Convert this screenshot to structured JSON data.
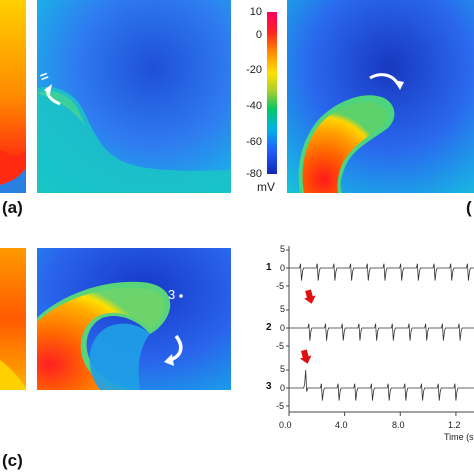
{
  "panels": {
    "a_label": "(a)",
    "b_label": "(",
    "c_label": "(c)",
    "electrode_marker_a": "=",
    "site_label_c": "3"
  },
  "colorbar": {
    "ticks": [
      "10",
      "0",
      "-20",
      "-40",
      "-60",
      "-80"
    ],
    "unit": "mV",
    "range_mV": [
      -80,
      10
    ],
    "colors": [
      "#ff0066",
      "#ff2020",
      "#ff8c00",
      "#ffe000",
      "#9acd32",
      "#00c864",
      "#00b4e6",
      "#2060ff",
      "#1428b4"
    ]
  },
  "traces": {
    "rows": [
      "1",
      "2",
      "3"
    ],
    "y_ticks": [
      "5",
      "0",
      "-5"
    ],
    "x_ticks": [
      "0.0",
      "4.0",
      "8.0",
      "1.2"
    ],
    "x_label": "Time (s"
  },
  "chart_data": {
    "type": "line",
    "title": "",
    "xlabel": "Time (s",
    "ylabel": "",
    "xlim": [
      0,
      13
    ],
    "ylim": [
      -5,
      5
    ],
    "series": [
      {
        "name": "1",
        "x": [
          0.9,
          2.1,
          3.3,
          4.5,
          5.7,
          6.9,
          8.1,
          9.3,
          10.5,
          11.7,
          12.9
        ],
        "values": [
          -3.5,
          -3.5,
          -3.5,
          -3.5,
          -3.5,
          -3.5,
          -3.5,
          -3.5,
          -3.5,
          -3.5,
          -3.5
        ]
      },
      {
        "name": "2",
        "x": [
          1.5,
          2.7,
          3.9,
          5.1,
          6.3,
          7.5,
          8.7,
          9.9,
          11.1,
          12.3
        ],
        "values": [
          -3.5,
          -3.5,
          -3.5,
          -3.5,
          -3.5,
          -3.5,
          -3.5,
          -3.5,
          -3.5,
          -3.5
        ]
      },
      {
        "name": "3",
        "x": [
          1.2,
          2.4,
          3.6,
          4.8,
          6.0,
          7.2,
          8.4,
          9.6,
          10.8,
          12.0
        ],
        "values": [
          5,
          -3.5,
          -3.5,
          -3.5,
          -3.5,
          -3.5,
          -3.5,
          -3.5,
          -3.5,
          -3.5
        ]
      }
    ]
  }
}
